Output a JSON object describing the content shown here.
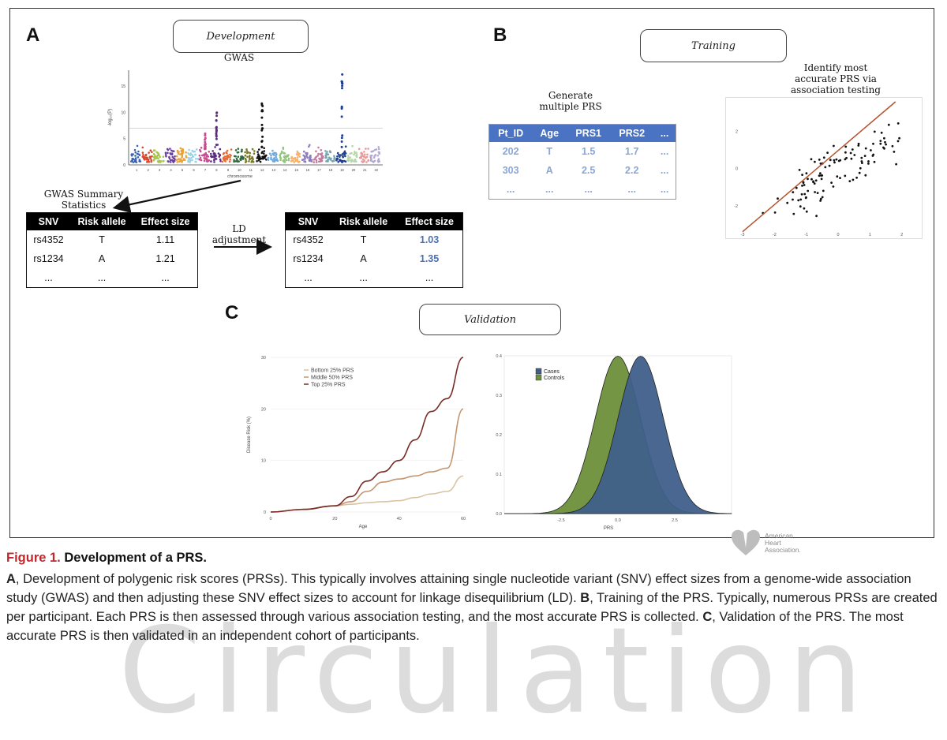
{
  "panels": {
    "a": {
      "letter": "A",
      "stage": "Development",
      "gwas_title": "GWAS",
      "manhattan": {
        "ylabel": "-log₁₀(P)",
        "xlabel": "chromosome",
        "yticks": [
          "0",
          "5",
          "10",
          "15"
        ],
        "chromosomes": [
          "1",
          "2",
          "3",
          "4",
          "5",
          "6",
          "7",
          "8",
          "9",
          "10",
          "11",
          "12",
          "13",
          "14",
          "15",
          "16",
          "17",
          "18",
          "19",
          "20",
          "21",
          "22"
        ],
        "colors": [
          "#3a63b0",
          "#d9482b",
          "#a8c64a",
          "#6b3fa0",
          "#e8a33a",
          "#9ad4e8",
          "#c84b8f",
          "#5b2b82",
          "#e26b3a",
          "#2f6b3f",
          "#7a7a2a",
          "#111111",
          "#6fa8dc",
          "#93c47d",
          "#f6b26b",
          "#8e7cc3",
          "#c27ba0",
          "#76a5af",
          "#1f3f8f",
          "#b6d7a8",
          "#ea9999",
          "#b4a7d6"
        ]
      },
      "summary_label": "GWAS Summary Statistics",
      "ld_label": "LD adjustment",
      "table_headers": [
        "SNV",
        "Risk allele",
        "Effect size"
      ],
      "raw_rows": [
        [
          "rs4352",
          "T",
          "1.11"
        ],
        [
          "rs1234",
          "A",
          "1.21"
        ],
        [
          "...",
          "...",
          "..."
        ]
      ],
      "adjusted_rows": [
        [
          "rs4352",
          "T",
          "1.03"
        ],
        [
          "rs1234",
          "A",
          "1.35"
        ],
        [
          "...",
          "...",
          "..."
        ]
      ]
    },
    "b": {
      "letter": "B",
      "stage": "Training",
      "generate_label": "Generate multiple PRS",
      "prs_headers": [
        "Pt_ID",
        "Age",
        "PRS1",
        "PRS2",
        "..."
      ],
      "prs_rows": [
        [
          "202",
          "T",
          "1.5",
          "1.7",
          "..."
        ],
        [
          "303",
          "A",
          "2.5",
          "2.2",
          "..."
        ],
        [
          "...",
          "...",
          "...",
          "...",
          "..."
        ]
      ],
      "identify_label": "Identify most accurate PRS via association testing",
      "scatter": {
        "xticks": [
          "-3",
          "-2",
          "-1",
          "0",
          "1",
          "2"
        ],
        "yticks": [
          "-2",
          "0",
          "2"
        ]
      }
    },
    "c": {
      "letter": "C",
      "stage": "Validation"
    }
  },
  "chart_data": [
    {
      "type": "line",
      "title": "",
      "xlabel": "Age",
      "ylabel": "Disease Risk (%)",
      "x": [
        0,
        10,
        20,
        25,
        30,
        35,
        40,
        45,
        50,
        55,
        60
      ],
      "xlim": [
        0,
        60
      ],
      "ylim": [
        0,
        30
      ],
      "xticks": [
        "0",
        "20",
        "40",
        "60"
      ],
      "yticks": [
        "0",
        "10",
        "20",
        "30"
      ],
      "legend_position": "top-left",
      "series": [
        {
          "name": "Bottom 25% PRS",
          "color": "#d9c3a3",
          "values": [
            0,
            0.5,
            1.2,
            1.5,
            1.8,
            2.0,
            2.2,
            2.8,
            3.5,
            4.0,
            7.0
          ]
        },
        {
          "name": "Middle 50% PRS",
          "color": "#c4956e",
          "values": [
            0,
            0.5,
            1.2,
            2.0,
            4.0,
            5.8,
            6.4,
            7.0,
            7.8,
            8.5,
            20.0
          ]
        },
        {
          "name": "Top 25% PRS",
          "color": "#7a2a24",
          "values": [
            0,
            0.5,
            1.2,
            3.0,
            6.0,
            7.8,
            10.0,
            14.0,
            19.5,
            22.0,
            30.0
          ]
        }
      ]
    },
    {
      "type": "area",
      "title": "",
      "xlabel": "PRS",
      "ylabel": "",
      "xlim": [
        -5,
        5
      ],
      "ylim": [
        0,
        0.4
      ],
      "xticks": [
        "-2.5",
        "0.0",
        "2.5"
      ],
      "yticks": [
        "0.0",
        "0.1",
        "0.2",
        "0.3",
        "0.4"
      ],
      "legend_position": "top-left",
      "series": [
        {
          "name": "Cases",
          "color": "#3f5f8a",
          "mean": 1.0,
          "sd": 1.0
        },
        {
          "name": "Controls",
          "color": "#6b8f3a",
          "mean": 0.0,
          "sd": 1.0
        }
      ]
    }
  ],
  "caption": {
    "figure_number": "Figure 1.",
    "title": "Development of a PRS.",
    "body": [
      {
        "b": "A",
        "t": ", Development of polygenic risk scores (PRSs). This typically involves attaining single nucleotide variant (SNV) effect sizes from a genome-wide association study (GWAS) and then adjusting these SNV effect sizes to account for linkage disequilibrium (LD). "
      },
      {
        "b": "B",
        "t": ", Training of the PRS. Typically, numerous PRSs are created per participant. Each PRS is then assessed through various association testing, and the most accurate PRS is collected. "
      },
      {
        "b": "C",
        "t": ", Validation of the PRS. The most accurate PRS is then validated in an independent cohort of participants."
      }
    ]
  },
  "logo": {
    "text_lines": [
      "American",
      "Heart",
      "Association."
    ]
  },
  "watermark": "Circulation"
}
